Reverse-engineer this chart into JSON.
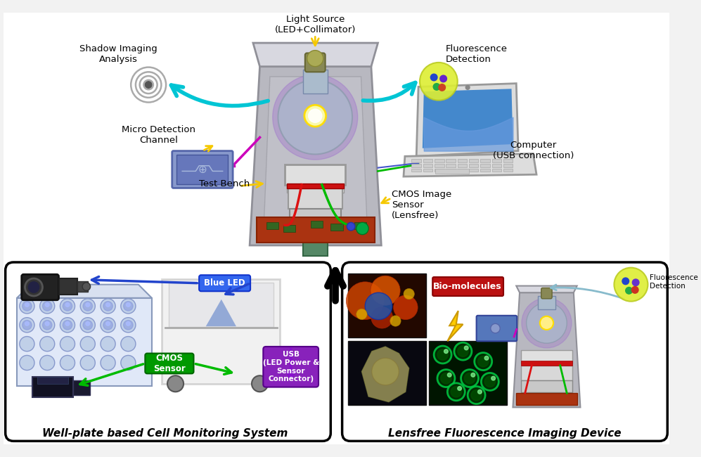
{
  "bg_color": "#f2f2f2",
  "white": "#ffffff",
  "black": "#000000",
  "title_left": "Well-plate based Cell Monitoring System",
  "title_right": "Lensfree Fluorescence Imaging Device",
  "labels": {
    "light_source": "Light Source\n(LED+Collimator)",
    "shadow_imaging": "Shadow Imaging\nAnalysis",
    "fluorescence_detection": "Fluorescence\nDetection",
    "micro_detection": "Micro Detection\nChannel",
    "test_bench": "Test Bench",
    "cmos_image": "CMOS Image\nSensor\n(Lensfree)",
    "computer": "Computer\n(USB connection)",
    "blue_led": "Blue LED",
    "cmos_sensor": "CMOS\nSensor",
    "usb": "USB\n(LED Power &\nSensor\nConnector)",
    "bio_molecules": "Bio-molecules",
    "fluorescence_det2": "Fluorescence\nDetection"
  },
  "colors": {
    "cyan": "#00c5d4",
    "yellow_arrow": "#f5c800",
    "green": "#00bb00",
    "red_cable": "#dd1111",
    "magenta": "#cc00bb",
    "blue_arrow": "#2244cc",
    "purple": "#8811cc",
    "dark_blue": "#003399",
    "device_gray": "#b8b8c0",
    "device_dark": "#909098",
    "device_light": "#d8d8e0",
    "bottle_glass": "#aabbcc",
    "bottle_cap": "#888855",
    "purple_glow": "#9966cc",
    "yellow_glow": "#ffee44",
    "red_band": "#cc1111",
    "pcb_red": "#aa3311",
    "lens_gray": "#cccccc",
    "screen_blue": "#4488cc",
    "laptop_gray": "#dddddd",
    "blue_led_bg": "#3366ee",
    "cmos_bg": "#009900",
    "usb_bg": "#8822bb",
    "bio_bg": "#bb1111",
    "shadow_gray": "#aaaaaa",
    "fl_yellow": "#ddee33",
    "micro_blue": "#6688bb",
    "green_bottle": "#558866"
  }
}
